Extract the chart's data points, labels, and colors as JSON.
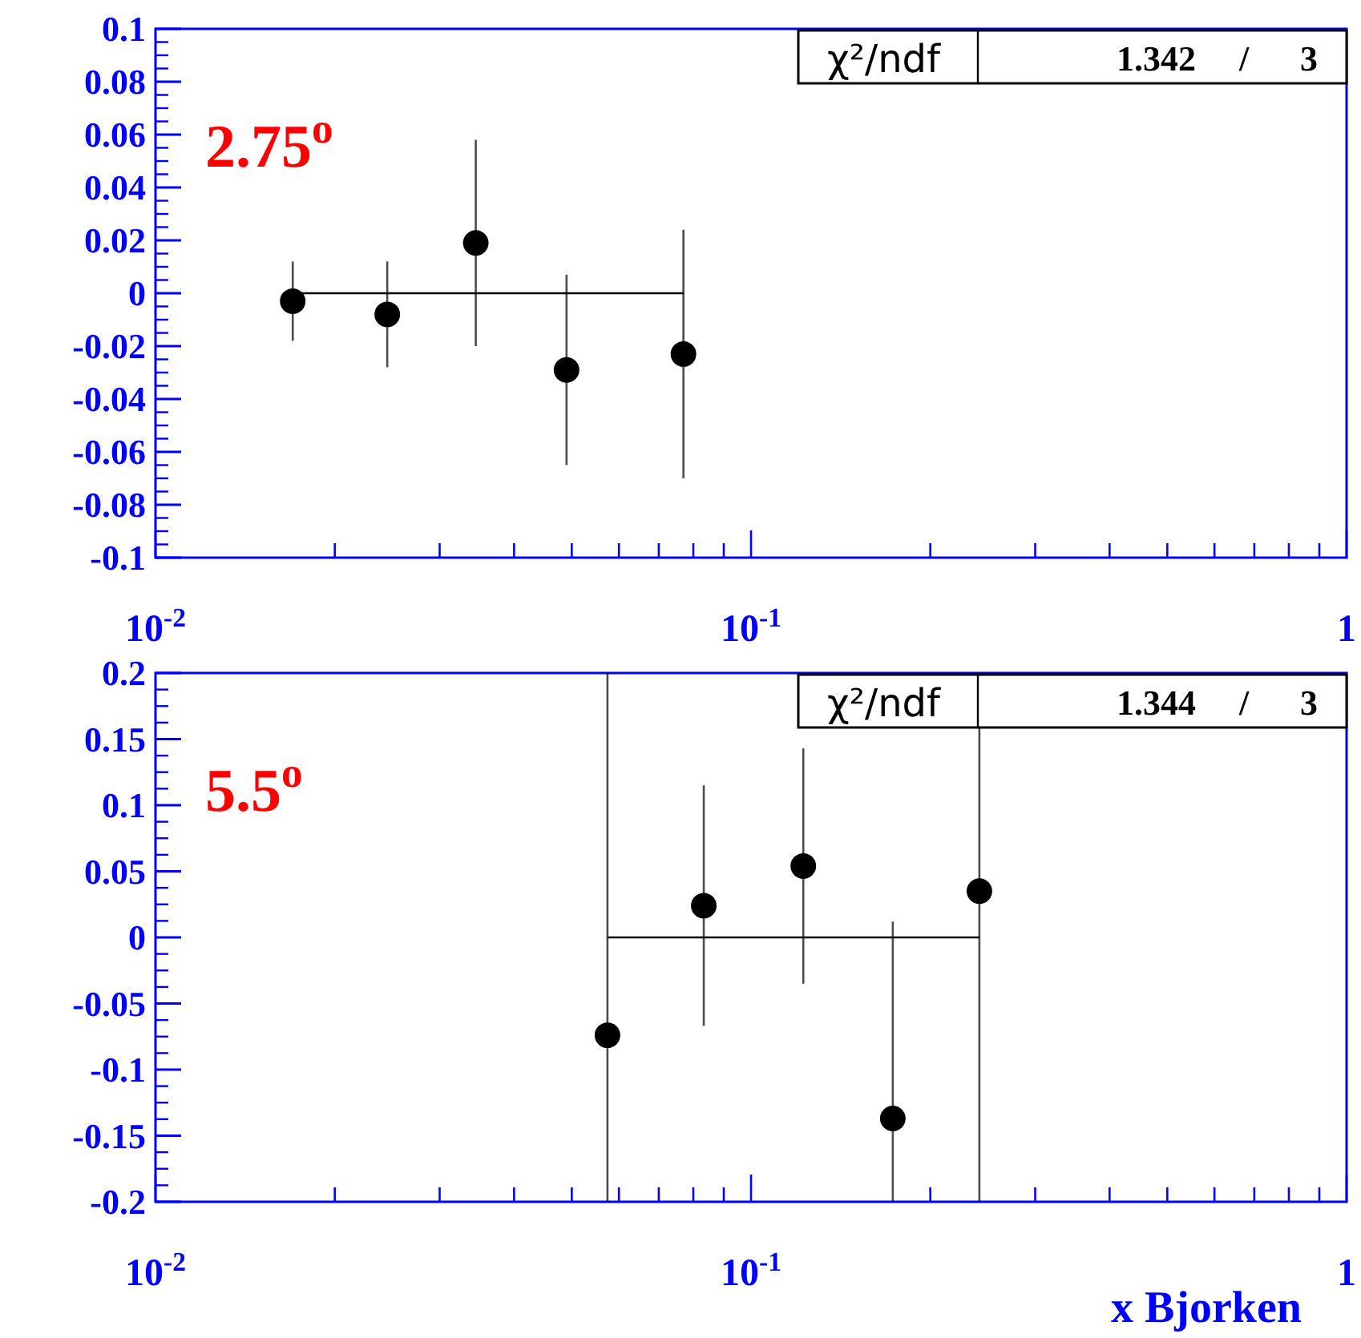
{
  "chart_data": [
    {
      "type": "scatter",
      "annotations": [
        "2.75$^{o}$",
        "χ²/ndf",
        "1.342",
        "/",
        "3"
      ],
      "log": "x",
      "xlim": [
        0.01,
        1
      ],
      "xticks": [
        {
          "value": 0.01,
          "label": "10$^{-2}$"
        },
        {
          "value": 0.02,
          "label": null
        },
        {
          "value": 0.03,
          "label": null
        },
        {
          "value": 0.04,
          "label": null
        },
        {
          "value": 0.05,
          "label": null
        },
        {
          "value": 0.06,
          "label": null
        },
        {
          "value": 0.07,
          "label": null
        },
        {
          "value": 0.08,
          "label": null
        },
        {
          "value": 0.09,
          "label": null
        },
        {
          "value": 0.1,
          "label": "10$^{-1}$"
        },
        {
          "value": 0.2,
          "label": null
        },
        {
          "value": 0.3,
          "label": null
        },
        {
          "value": 0.4,
          "label": null
        },
        {
          "value": 0.5,
          "label": null
        },
        {
          "value": 0.6,
          "label": null
        },
        {
          "value": 0.7,
          "label": null
        },
        {
          "value": 0.8,
          "label": null
        },
        {
          "value": 0.9,
          "label": null
        },
        {
          "value": 1,
          "label": "1"
        }
      ],
      "ylim": [
        -0.1,
        0.1
      ],
      "yticks": [
        -0.1,
        -0.08,
        -0.06,
        -0.04,
        -0.02,
        0,
        0.02,
        0.04,
        0.06,
        0.08,
        0.1
      ],
      "series": [
        {
          "marker": "circle",
          "color": "#000000",
          "x": [
            0.017,
            0.0245,
            0.0345,
            0.049,
            0.077
          ],
          "values": [
            -0.003,
            -0.008,
            0.019,
            -0.029,
            -0.023
          ],
          "errors": [
            0.015,
            0.02,
            0.039,
            0.036,
            0.047
          ]
        },
        {
          "type": "line",
          "color": "#000000",
          "x": [
            0.017,
            0.077
          ],
          "values": [
            0,
            0
          ]
        }
      ]
    },
    {
      "type": "scatter",
      "annotations": [
        "5.5$^{o}$",
        "χ²/ndf",
        "1.344",
        "/",
        "3"
      ],
      "log": "x",
      "xlabel": "x Bjorken",
      "xlim": [
        0.01,
        1
      ],
      "xticks": [
        {
          "value": 0.01,
          "label": "10$^{-2}$"
        },
        {
          "value": 0.02,
          "label": null
        },
        {
          "value": 0.03,
          "label": null
        },
        {
          "value": 0.04,
          "label": null
        },
        {
          "value": 0.05,
          "label": null
        },
        {
          "value": 0.06,
          "label": null
        },
        {
          "value": 0.07,
          "label": null
        },
        {
          "value": 0.08,
          "label": null
        },
        {
          "value": 0.09,
          "label": null
        },
        {
          "value": 0.1,
          "label": "10$^{-1}$"
        },
        {
          "value": 0.2,
          "label": null
        },
        {
          "value": 0.3,
          "label": null
        },
        {
          "value": 0.4,
          "label": null
        },
        {
          "value": 0.5,
          "label": null
        },
        {
          "value": 0.6,
          "label": null
        },
        {
          "value": 0.7,
          "label": null
        },
        {
          "value": 0.8,
          "label": null
        },
        {
          "value": 0.9,
          "label": null
        },
        {
          "value": 1,
          "label": "1"
        }
      ],
      "ylim": [
        -0.2,
        0.2
      ],
      "yticks": [
        -0.2,
        -0.15,
        -0.1,
        -0.05,
        0,
        0.05,
        0.1,
        0.15,
        0.2
      ],
      "series": [
        {
          "marker": "circle",
          "color": "#000000",
          "x": [
            0.0574,
            0.0833,
            0.1224,
            0.173,
            0.2418
          ],
          "values": [
            -0.074,
            0.024,
            0.054,
            -0.137,
            0.035
          ],
          "errors": [
            [
              -0.2,
              0.2
            ],
            0.091,
            0.089,
            [
              -0.2,
              0.012
            ],
            [
              -0.2,
              0.2
            ]
          ]
        },
        {
          "type": "line",
          "color": "#000000",
          "x": [
            0.0574,
            0.2418
          ],
          "values": [
            0,
            0
          ]
        }
      ]
    }
  ]
}
